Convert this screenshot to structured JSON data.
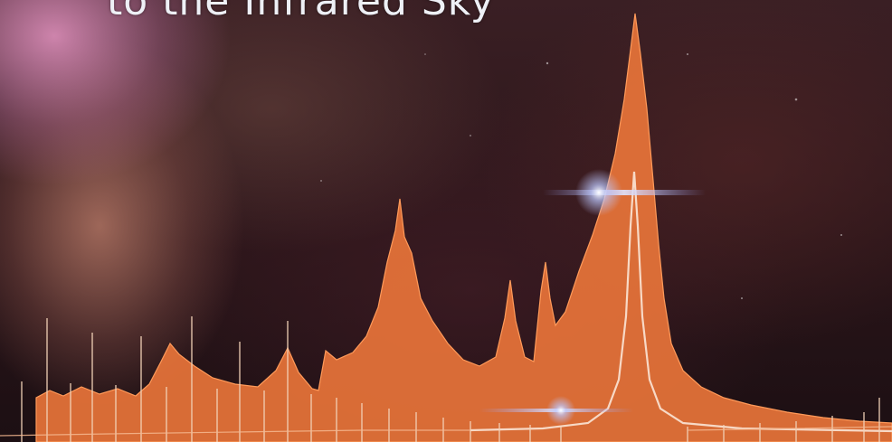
{
  "caption": "to the Infrared Sky",
  "colors": {
    "spectrum_fill": "#e8743a",
    "spectrum_core": "#ff9a5a",
    "comb_lines": "#f3d2b8",
    "star_glow": "#bcc8ff"
  }
}
